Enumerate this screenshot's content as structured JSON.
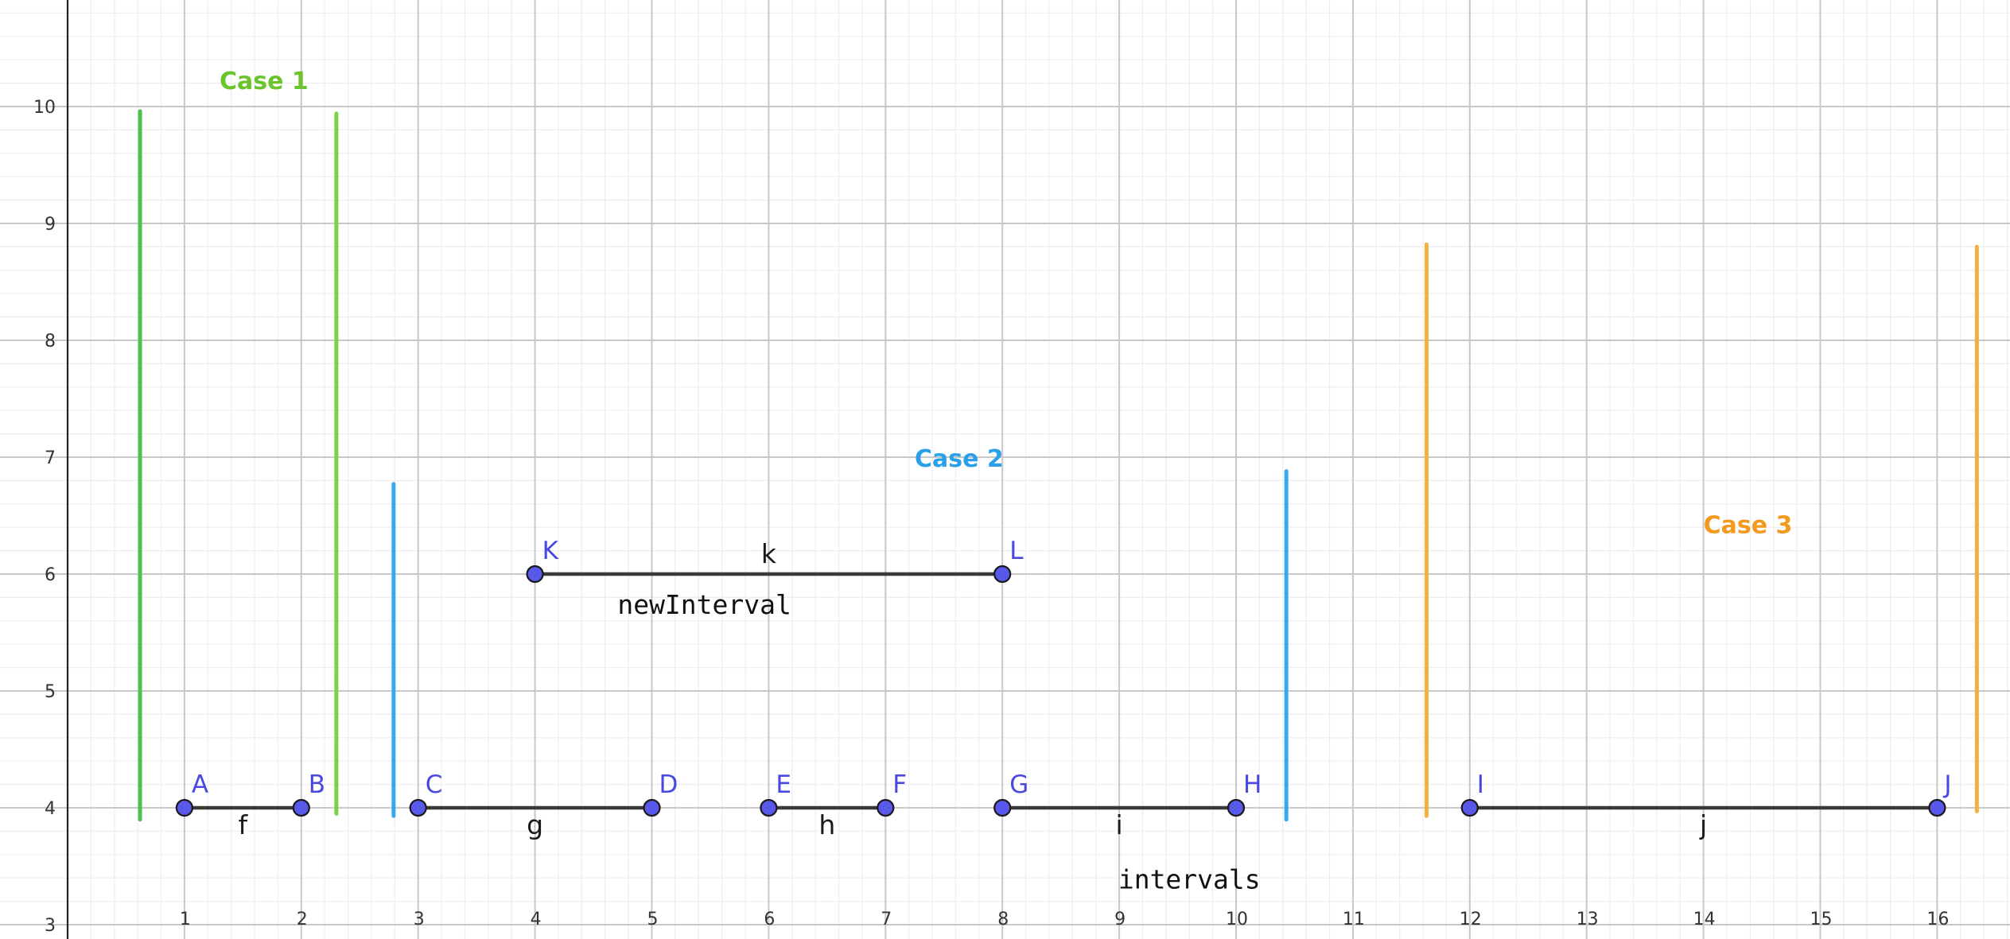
{
  "colors": {
    "point_fill": "#5858ea",
    "point_label": "#4a48e0",
    "segment": "#3a3a3a",
    "case1_a": "#4cc24c",
    "case1_b": "#7cd04c",
    "case2": "#3aa8ec",
    "case3": "#f2b040"
  },
  "axes": {
    "x_ticks": [
      "1",
      "2",
      "3",
      "4",
      "5",
      "6",
      "7",
      "8",
      "9",
      "10",
      "11",
      "12",
      "13",
      "14",
      "15",
      "16"
    ],
    "y_ticks": [
      "3",
      "4",
      "5",
      "6",
      "7",
      "8",
      "9",
      "10"
    ]
  },
  "points": [
    {
      "name": "A",
      "x": 1,
      "y": 4
    },
    {
      "name": "B",
      "x": 2,
      "y": 4
    },
    {
      "name": "C",
      "x": 3,
      "y": 4
    },
    {
      "name": "D",
      "x": 5,
      "y": 4
    },
    {
      "name": "E",
      "x": 6,
      "y": 4
    },
    {
      "name": "F",
      "x": 7,
      "y": 4
    },
    {
      "name": "G",
      "x": 8,
      "y": 4
    },
    {
      "name": "H",
      "x": 10,
      "y": 4
    },
    {
      "name": "I",
      "x": 12,
      "y": 4
    },
    {
      "name": "J",
      "x": 16,
      "y": 4
    },
    {
      "name": "K",
      "x": 4,
      "y": 6
    },
    {
      "name": "L",
      "x": 8,
      "y": 6
    }
  ],
  "segments": [
    {
      "name": "f",
      "from": "A",
      "to": "B"
    },
    {
      "name": "g",
      "from": "C",
      "to": "D"
    },
    {
      "name": "h",
      "from": "E",
      "to": "F"
    },
    {
      "name": "i",
      "from": "G",
      "to": "H"
    },
    {
      "name": "j",
      "from": "I",
      "to": "J"
    },
    {
      "name": "k",
      "from": "K",
      "to": "L"
    }
  ],
  "boundaries": [
    {
      "x": 0.62,
      "y_from": 3.9,
      "y_to": 9.96,
      "color": "#4cc24c"
    },
    {
      "x": 2.3,
      "y_from": 3.95,
      "y_to": 9.94,
      "color": "#7cd04c"
    },
    {
      "x": 2.79,
      "y_from": 3.93,
      "y_to": 6.77,
      "color": "#3aa8ec"
    },
    {
      "x": 10.43,
      "y_from": 3.9,
      "y_to": 6.88,
      "color": "#3aa8ec"
    },
    {
      "x": 11.63,
      "y_from": 3.93,
      "y_to": 8.82,
      "color": "#f2b040"
    },
    {
      "x": 16.34,
      "y_from": 3.97,
      "y_to": 8.8,
      "color": "#f2b040"
    }
  ],
  "case_labels": [
    {
      "text": "Case 1",
      "x": 1.3,
      "y": 10.15,
      "color": "#6cc42c"
    },
    {
      "text": "Case 2",
      "x": 7.25,
      "y": 6.92,
      "color": "#2aa0e8"
    },
    {
      "text": "Case 3",
      "x": 14.0,
      "y": 6.35,
      "color": "#f29a1e"
    }
  ],
  "text_labels": [
    {
      "text": "newInterval",
      "x": 5.45,
      "y": 5.66
    },
    {
      "text": "intervals",
      "x": 9.6,
      "y": 3.31
    }
  ]
}
